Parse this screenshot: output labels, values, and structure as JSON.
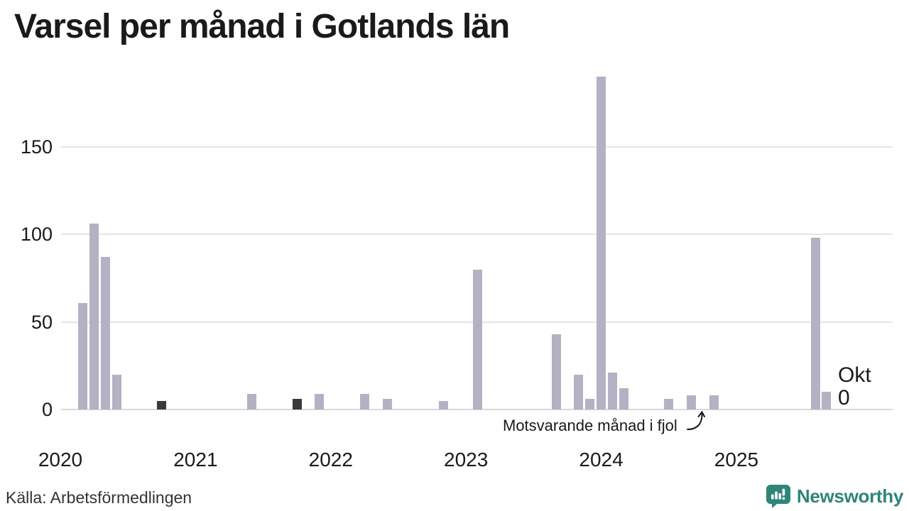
{
  "title": "Varsel per månad i Gotlands län",
  "source": "Källa: Arbetsförmedlingen",
  "annotation": {
    "text": "Motsvarande månad i fjol",
    "points_to_month": "2024-10"
  },
  "latest_label": {
    "month": "Okt",
    "value": "0"
  },
  "brand": {
    "name": "Newsworthy",
    "color": "#2E8579",
    "icon": "newsworthy-speech-bubble-chart-icon"
  },
  "colors": {
    "bar": "#B4B1C4",
    "bar_highlight": "#3A3A3A",
    "gridline": "#E5E5E5",
    "baseline": "#D8D8D8",
    "text": "#1A1A1A",
    "source_text": "#333333",
    "brand_teal": "#2E8579",
    "background": "#FFFFFF"
  },
  "chart_data": {
    "type": "bar",
    "title": "Varsel per månad i Gotlands län",
    "xlabel": "",
    "ylabel": "",
    "x_axis": {
      "start": "2020-01",
      "end": "2025-12",
      "tick_years": [
        "2020",
        "2021",
        "2022",
        "2023",
        "2024",
        "2025"
      ]
    },
    "y_axis": {
      "ticks": [
        0,
        50,
        100,
        150
      ],
      "range": [
        0,
        198
      ],
      "grid": true
    },
    "legend": "none",
    "highlight_meaning": "Dark bars mark October, the same month as the latest data point",
    "bars": [
      {
        "month": "2020-03",
        "value": 61,
        "highlight": false
      },
      {
        "month": "2020-04",
        "value": 106,
        "highlight": false
      },
      {
        "month": "2020-05",
        "value": 87,
        "highlight": false
      },
      {
        "month": "2020-06",
        "value": 20,
        "highlight": false
      },
      {
        "month": "2020-10",
        "value": 5,
        "highlight": true
      },
      {
        "month": "2021-06",
        "value": 9,
        "highlight": false
      },
      {
        "month": "2021-10",
        "value": 6,
        "highlight": true
      },
      {
        "month": "2021-12",
        "value": 9,
        "highlight": false
      },
      {
        "month": "2022-04",
        "value": 9,
        "highlight": false
      },
      {
        "month": "2022-06",
        "value": 6,
        "highlight": false
      },
      {
        "month": "2022-11",
        "value": 5,
        "highlight": false
      },
      {
        "month": "2023-02",
        "value": 80,
        "highlight": false
      },
      {
        "month": "2023-09",
        "value": 43,
        "highlight": false
      },
      {
        "month": "2023-11",
        "value": 20,
        "highlight": false
      },
      {
        "month": "2023-12",
        "value": 6,
        "highlight": false
      },
      {
        "month": "2024-01",
        "value": 190,
        "highlight": false
      },
      {
        "month": "2024-02",
        "value": 21,
        "highlight": false
      },
      {
        "month": "2024-03",
        "value": 12,
        "highlight": false
      },
      {
        "month": "2024-07",
        "value": 6,
        "highlight": false
      },
      {
        "month": "2024-09",
        "value": 8,
        "highlight": false
      },
      {
        "month": "2024-10",
        "value": 0,
        "highlight": true
      },
      {
        "month": "2024-11",
        "value": 8,
        "highlight": false
      },
      {
        "month": "2025-08",
        "value": 98,
        "highlight": false
      },
      {
        "month": "2025-09",
        "value": 10,
        "highlight": false
      },
      {
        "month": "2025-10",
        "value": 0,
        "highlight": false
      }
    ]
  }
}
